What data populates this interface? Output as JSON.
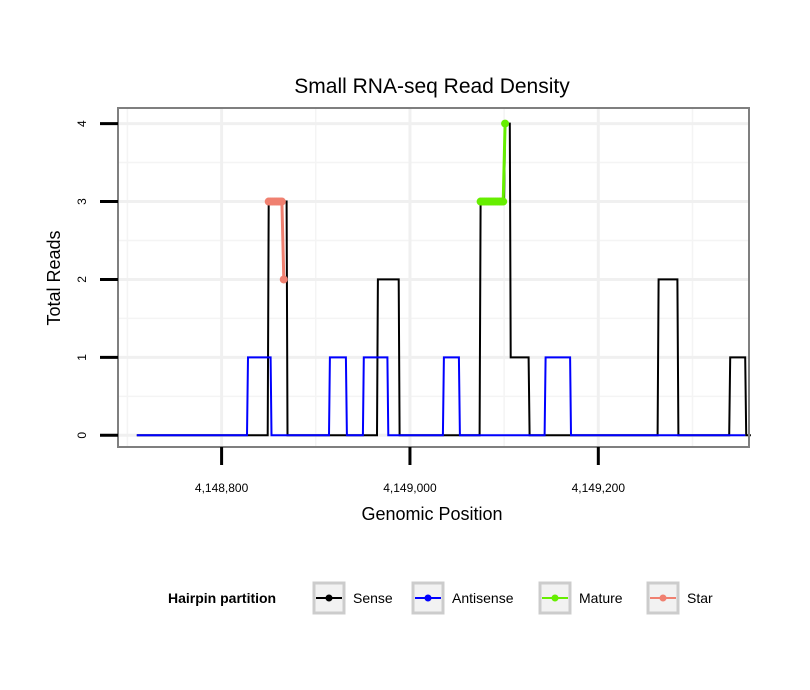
{
  "chart_data": {
    "type": "line",
    "title": "Small RNA-seq Read Density",
    "xlabel": "Genomic Position",
    "ylabel": "Total Reads",
    "xlim": [
      4148690,
      4149360
    ],
    "ylim": [
      -0.15,
      4.2
    ],
    "x_ticks": [
      4148800,
      4149000,
      4149200
    ],
    "x_tick_labels": [
      "4,148,800",
      "4,149,000",
      "4,149,200"
    ],
    "y_ticks": [
      0,
      1,
      2,
      3,
      4
    ],
    "y_tick_labels": [
      "0",
      "1",
      "2",
      "3",
      "4"
    ],
    "grid": true,
    "legend": {
      "title": "Hairpin partition",
      "position": "bottom",
      "entries": [
        {
          "name": "Sense",
          "color": "#000000"
        },
        {
          "name": "Antisense",
          "color": "#0000ff"
        },
        {
          "name": "Mature",
          "color": "#66ee00"
        },
        {
          "name": "Star",
          "color": "#f08070"
        }
      ]
    },
    "series": [
      {
        "name": "Sense",
        "color": "#000000",
        "x": [
          4148710,
          4148849,
          4148850,
          4148864,
          4148865,
          4148869,
          4148870,
          4148965,
          4148966,
          4148988,
          4148989,
          4149074,
          4149075,
          4149100,
          4149101,
          4149106,
          4149107,
          4149126,
          4149127,
          4149263,
          4149264,
          4149284,
          4149285,
          4149339,
          4149340,
          4149356,
          4149357,
          4149362
        ],
        "values": [
          0,
          0,
          3,
          3,
          3,
          3,
          0,
          0,
          2,
          2,
          0,
          0,
          3,
          3,
          4,
          4,
          1,
          1,
          0,
          0,
          2,
          2,
          0,
          0,
          1,
          1,
          0,
          0
        ]
      },
      {
        "name": "Antisense",
        "color": "#0000ff",
        "x": [
          4148710,
          4148827,
          4148828,
          4148852,
          4148853,
          4148914,
          4148915,
          4148932,
          4148933,
          4148950,
          4148951,
          4148976,
          4148977,
          4149035,
          4149036,
          4149052,
          4149053,
          4149143,
          4149144,
          4149170,
          4149171,
          4149356
        ],
        "values": [
          0,
          0,
          1,
          1,
          0,
          0,
          1,
          1,
          0,
          0,
          1,
          1,
          0,
          0,
          1,
          1,
          0,
          0,
          1,
          1,
          0,
          0
        ]
      },
      {
        "name": "Mature",
        "color": "#66ee00",
        "x": [
          4149075,
          4149077,
          4149079,
          4149081,
          4149083,
          4149085,
          4149087,
          4149089,
          4149091,
          4149093,
          4149095,
          4149097,
          4149099,
          4149101
        ],
        "values": [
          3,
          3,
          3,
          3,
          3,
          3,
          3,
          3,
          3,
          3,
          3,
          3,
          3,
          4
        ]
      },
      {
        "name": "Star",
        "color": "#f08070",
        "x": [
          4148850,
          4148852,
          4148854,
          4148856,
          4148858,
          4148860,
          4148862,
          4148864,
          4148866
        ],
        "values": [
          3,
          3,
          3,
          3,
          3,
          3,
          3,
          3,
          2
        ]
      }
    ]
  }
}
